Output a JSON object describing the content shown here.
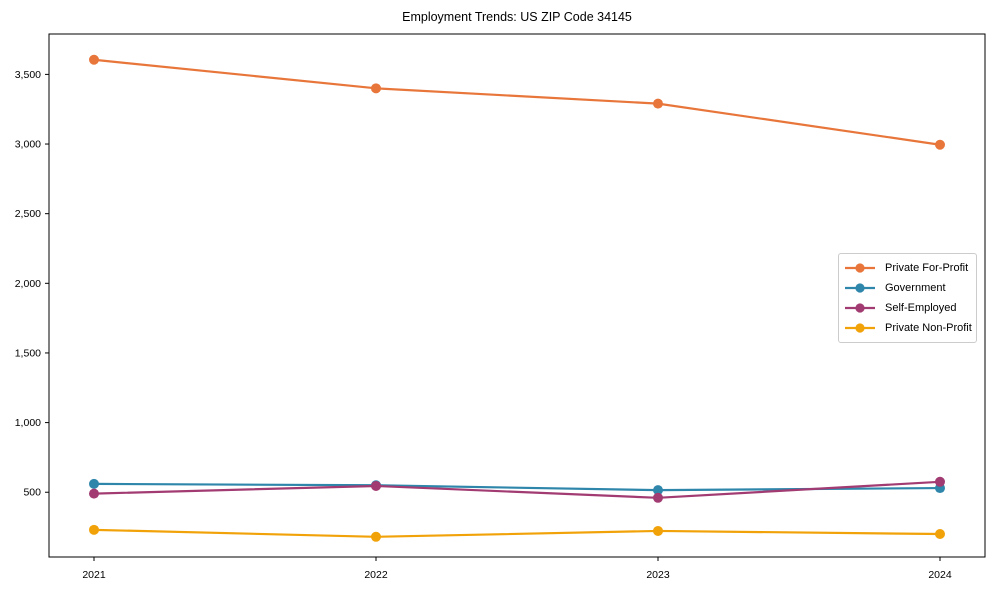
{
  "chart_data": {
    "type": "line",
    "title": "Employment Trends: US ZIP Code 34145",
    "categories": [
      "2021",
      "2022",
      "2023",
      "2024"
    ],
    "series": [
      {
        "name": "Private For-Profit",
        "color": "#e8763b",
        "values": [
          3605,
          3400,
          3290,
          2995
        ]
      },
      {
        "name": "Government",
        "color": "#2e86ab",
        "values": [
          560,
          550,
          515,
          530
        ]
      },
      {
        "name": "Self-Employed",
        "color": "#a23b72",
        "values": [
          490,
          545,
          460,
          575
        ]
      },
      {
        "name": "Private Non-Profit",
        "color": "#f1a208",
        "values": [
          230,
          180,
          222,
          200
        ]
      }
    ],
    "yticks": [
      500,
      1000,
      1500,
      2000,
      2500,
      3000,
      3500
    ],
    "ylim": [
      35,
      3790
    ],
    "grid": false,
    "legend_position": "center-right",
    "axis_color": "#000000",
    "legend_border_color": "#cccccc"
  }
}
